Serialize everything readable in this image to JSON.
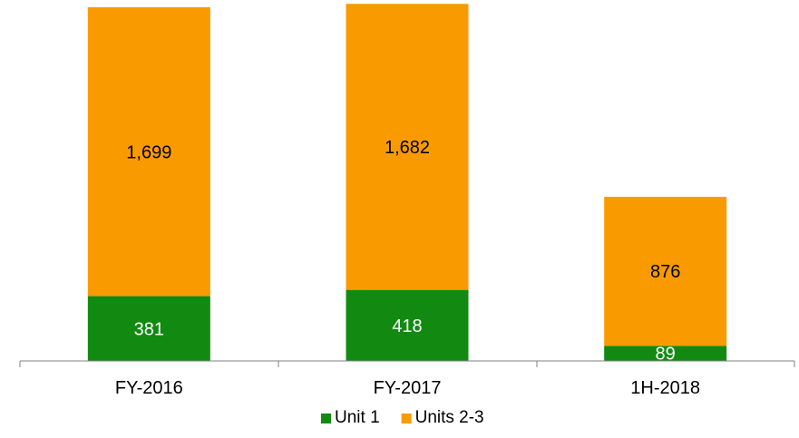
{
  "chart_data": {
    "type": "bar",
    "stacked": true,
    "categories": [
      "FY-2016",
      "FY-2017",
      "1H-2018"
    ],
    "series": [
      {
        "name": "Unit 1",
        "color": "#128A12",
        "values": [
          381,
          418,
          89
        ]
      },
      {
        "name": "Units 2-3",
        "color": "#F99B00",
        "values": [
          1699,
          1682,
          876
        ]
      }
    ],
    "label_colors": {
      "Unit 1": "#ffffff",
      "Units 2-3": "#000000"
    },
    "ylim": [
      0,
      2080
    ],
    "y_axis_visible": false,
    "grid": false,
    "legend_position": "bottom"
  }
}
